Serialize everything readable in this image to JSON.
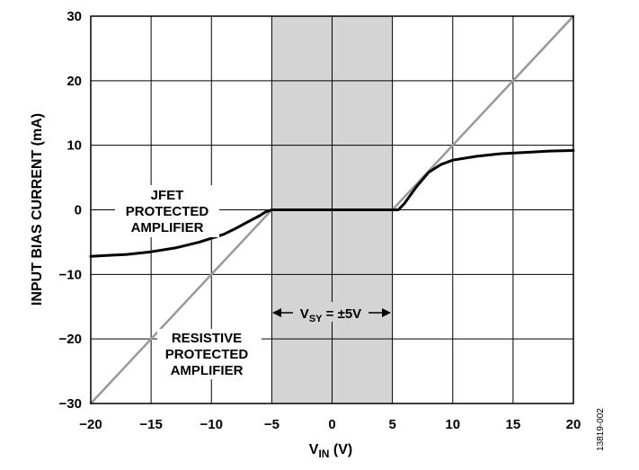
{
  "chart_data": {
    "type": "line",
    "xlabel": "V",
    "xlabel_sub": "IN",
    "xlabel_unit": " (V)",
    "ylabel": "INPUT BIAS CURRENT (mA)",
    "xlim": [
      -20,
      20
    ],
    "ylim": [
      -30,
      30
    ],
    "x_ticks": [
      -20,
      -15,
      -10,
      -5,
      0,
      5,
      10,
      15,
      20
    ],
    "y_ticks": [
      30,
      20,
      10,
      0,
      -10,
      -20,
      -30
    ],
    "x_tick_labels": [
      "−20",
      "−15",
      "−10",
      "−5",
      "0",
      "5",
      "10",
      "15",
      "20"
    ],
    "y_tick_labels": [
      "30",
      "20",
      "10",
      "0",
      "−10",
      "−20",
      "−30"
    ],
    "grid": true,
    "shaded_region": {
      "x": [
        -5,
        5
      ],
      "color": "#d4d4d4"
    },
    "series": [
      {
        "name": "JFET PROTECTED AMPLIFIER",
        "color": "#000000",
        "x": [
          -20,
          -17,
          -15,
          -13,
          -11,
          -9,
          -8,
          -7,
          -6,
          -5.5,
          -5,
          5,
          5.5,
          6,
          7,
          8,
          9,
          10,
          12,
          14,
          16,
          18,
          20
        ],
        "y": [
          -7.2,
          -6.9,
          -6.5,
          -5.9,
          -5.0,
          -3.8,
          -2.9,
          -1.9,
          -0.9,
          -0.3,
          0,
          0,
          0,
          1.0,
          3.6,
          5.8,
          7.0,
          7.7,
          8.3,
          8.7,
          8.9,
          9.1,
          9.2
        ]
      },
      {
        "name": "RESISTIVE PROTECTED AMPLIFIER",
        "color": "#999999",
        "x": [
          -20,
          -5,
          5,
          20
        ],
        "y": [
          -30,
          0,
          0,
          30
        ]
      }
    ],
    "annotations": {
      "jfet": [
        "JFET",
        "PROTECTED",
        "AMPLIFIER"
      ],
      "resistive": [
        "RESISTIVE",
        "PROTECTED",
        "AMPLIFIER"
      ],
      "vsy_main": "V",
      "vsy_sub": "SY",
      "vsy_value": " = ±5V"
    },
    "figure_id": "13819-002"
  }
}
